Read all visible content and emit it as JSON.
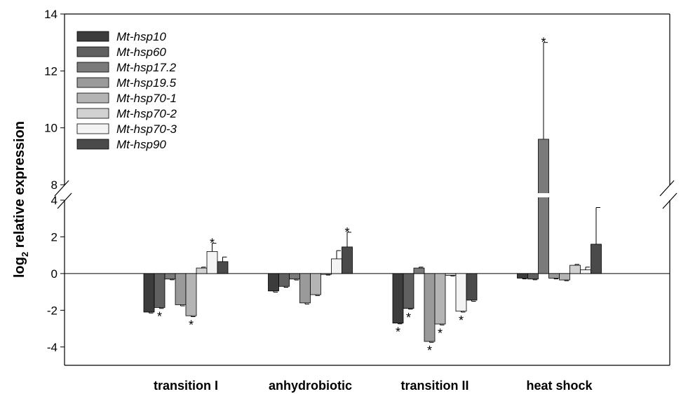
{
  "chart_data": {
    "type": "bar",
    "title": "",
    "xlabel": "",
    "ylabel": "relative expression",
    "ylabel_prefix": "log",
    "ylabel_subscript": "2",
    "categories": [
      "transition I",
      "anhydrobiotic",
      "transition II",
      "heat shock"
    ],
    "broken_axis": {
      "lower_range": [
        -5,
        4
      ],
      "upper_range": [
        8,
        14
      ]
    },
    "yticks_lower": [
      "-4",
      "-2",
      "0",
      "2",
      "4"
    ],
    "yticks_upper": [
      "8",
      "10",
      "12",
      "14"
    ],
    "grid": false,
    "legend_position": "top-left",
    "series": [
      {
        "name": "Mt-hsp10",
        "color": "#3c3c3c",
        "values": [
          -2.1,
          -0.95,
          -2.7,
          -0.25
        ],
        "errors": [
          0.05,
          0.06,
          0.04,
          0.04
        ],
        "significant": [
          false,
          false,
          true,
          false
        ]
      },
      {
        "name": "Mt-hsp60",
        "color": "#606060",
        "values": [
          -1.85,
          -0.7,
          -1.9,
          -0.3
        ],
        "errors": [
          0.05,
          0.05,
          0.04,
          0.04
        ],
        "significant": [
          true,
          false,
          true,
          false
        ]
      },
      {
        "name": "Mt-hsp17.2",
        "color": "#7a7a7a",
        "values": [
          -0.3,
          -0.3,
          0.3,
          9.6
        ],
        "errors": [
          0.04,
          0.05,
          0.05,
          3.4
        ],
        "significant": [
          false,
          false,
          false,
          true
        ]
      },
      {
        "name": "Mt-hsp19.5",
        "color": "#9a9a9a",
        "values": [
          -1.7,
          -1.6,
          -3.7,
          -0.25
        ],
        "errors": [
          0.06,
          0.06,
          0.05,
          0.04
        ],
        "significant": [
          false,
          false,
          true,
          false
        ]
      },
      {
        "name": "Mt-hsp70-1",
        "color": "#b4b4b4",
        "values": [
          -2.3,
          -1.15,
          -2.75,
          -0.35
        ],
        "errors": [
          0.05,
          0.05,
          0.05,
          0.04
        ],
        "significant": [
          true,
          false,
          true,
          false
        ]
      },
      {
        "name": "Mt-hsp70-2",
        "color": "#d2d2d2",
        "values": [
          0.3,
          -0.05,
          -0.1,
          0.45
        ],
        "errors": [
          0.05,
          0.03,
          0.03,
          0.05
        ],
        "significant": [
          false,
          false,
          false,
          false
        ]
      },
      {
        "name": "Mt-hsp70-3",
        "color": "#f4f4f4",
        "values": [
          1.2,
          0.8,
          -2.05,
          0.2
        ],
        "errors": [
          0.45,
          0.45,
          0.05,
          0.15
        ],
        "significant": [
          true,
          false,
          true,
          false
        ]
      },
      {
        "name": "Mt-hsp90",
        "color": "#4a4a4a",
        "values": [
          0.65,
          1.45,
          -1.45,
          1.6
        ],
        "errors": [
          0.25,
          0.8,
          0.06,
          2.0
        ],
        "significant": [
          false,
          true,
          false,
          false
        ]
      }
    ],
    "significance_marker": "*"
  }
}
